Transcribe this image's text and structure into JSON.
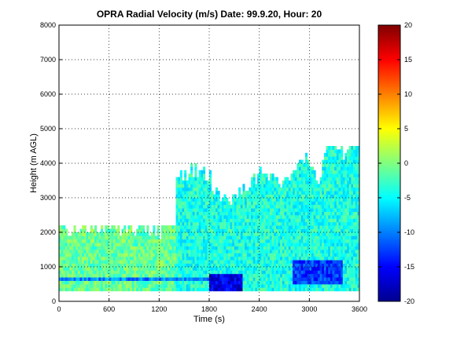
{
  "chart_data": {
    "type": "heatmap",
    "title": "OPRA Radial Velocity (m/s)  Date: 99.9.20, Hour: 20",
    "xlabel": "Time (s)",
    "ylabel": "Height (m AGL)",
    "xlim": [
      0,
      3600
    ],
    "ylim": [
      0,
      8000
    ],
    "x_ticks": [
      "0",
      "600",
      "1200",
      "1800",
      "2400",
      "3000",
      "3600"
    ],
    "y_ticks": [
      "0",
      "1000",
      "2000",
      "3000",
      "4000",
      "5000",
      "6000",
      "7000",
      "8000"
    ],
    "grid": "dotted",
    "colorbar": {
      "colormap": "jet",
      "clim": [
        -20,
        20
      ],
      "ticks": [
        "20",
        "15",
        "10",
        "5",
        "0",
        "-5",
        "-10",
        "-15",
        "-20"
      ]
    },
    "data_top_profile_m": {
      "x": [
        0,
        100,
        200,
        400,
        600,
        800,
        1000,
        1200,
        1400,
        1500,
        1600,
        1800,
        1900,
        2000,
        2200,
        2400,
        2600,
        2800,
        2900,
        3000,
        3100,
        3200,
        3300,
        3400,
        3500,
        3600
      ],
      "top": [
        2500,
        2000,
        2000,
        2100,
        2200,
        2000,
        2150,
        2000,
        3800,
        3600,
        3800,
        3500,
        3000,
        2900,
        3200,
        3700,
        3400,
        3600,
        4200,
        3900,
        3500,
        4200,
        4500,
        4300,
        4800,
        4700
      ]
    },
    "data_bottom_m": 300,
    "velocity_zones": [
      {
        "x_range": [
          0,
          1400
        ],
        "height_range": [
          300,
          2200
        ],
        "velocity_ms": -1,
        "note": "mostly near-zero"
      },
      {
        "x_range": [
          1400,
          3600
        ],
        "height_range": [
          300,
          4500
        ],
        "velocity_ms": -4,
        "note": "cyan, mixed"
      },
      {
        "x_range": [
          1800,
          2200
        ],
        "height_range": [
          300,
          800
        ],
        "velocity_ms": -16
      },
      {
        "x_range": [
          2800,
          3400
        ],
        "height_range": [
          500,
          1200
        ],
        "velocity_ms": -13
      },
      {
        "x_range": [
          0,
          1800
        ],
        "height_range": [
          600,
          700
        ],
        "velocity_ms": -10
      }
    ]
  }
}
